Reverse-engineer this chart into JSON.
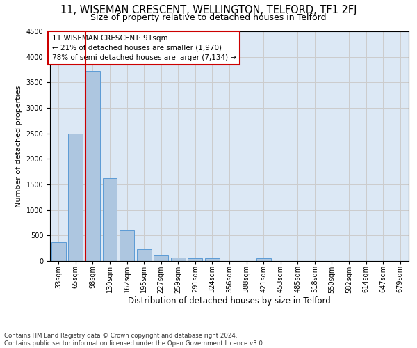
{
  "title1": "11, WISEMAN CRESCENT, WELLINGTON, TELFORD, TF1 2FJ",
  "title2": "Size of property relative to detached houses in Telford",
  "xlabel": "Distribution of detached houses by size in Telford",
  "ylabel": "Number of detached properties",
  "categories": [
    "33sqm",
    "65sqm",
    "98sqm",
    "130sqm",
    "162sqm",
    "195sqm",
    "227sqm",
    "259sqm",
    "291sqm",
    "324sqm",
    "356sqm",
    "388sqm",
    "421sqm",
    "453sqm",
    "485sqm",
    "518sqm",
    "550sqm",
    "582sqm",
    "614sqm",
    "647sqm",
    "679sqm"
  ],
  "values": [
    375,
    2500,
    3725,
    1625,
    600,
    230,
    110,
    65,
    50,
    50,
    0,
    0,
    55,
    0,
    0,
    0,
    0,
    0,
    0,
    0,
    0
  ],
  "bar_color": "#adc6e0",
  "bar_edge_color": "#5b9bd5",
  "vline_color": "#cc0000",
  "annotation_text": "11 WISEMAN CRESCENT: 91sqm\n← 21% of detached houses are smaller (1,970)\n78% of semi-detached houses are larger (7,134) →",
  "annotation_box_color": "#ffffff",
  "annotation_box_edge_color": "#cc0000",
  "ylim": [
    0,
    4500
  ],
  "yticks": [
    0,
    500,
    1000,
    1500,
    2000,
    2500,
    3000,
    3500,
    4000,
    4500
  ],
  "grid_color": "#cccccc",
  "bg_color": "#dce8f5",
  "footnote": "Contains HM Land Registry data © Crown copyright and database right 2024.\nContains public sector information licensed under the Open Government Licence v3.0.",
  "title1_fontsize": 10.5,
  "title2_fontsize": 9,
  "xlabel_fontsize": 8.5,
  "ylabel_fontsize": 8,
  "tick_fontsize": 7,
  "annot_fontsize": 7.5
}
